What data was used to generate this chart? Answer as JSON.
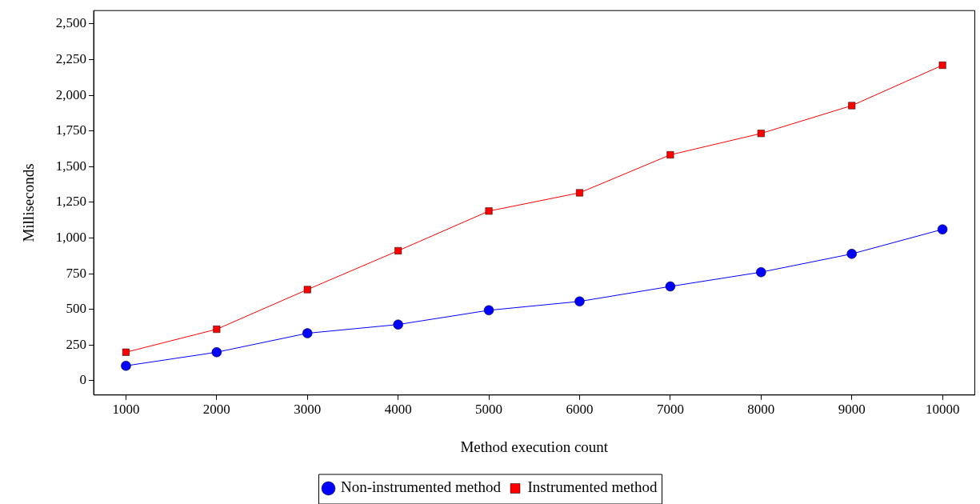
{
  "chart_data": {
    "type": "line",
    "xlabel": "Method execution count",
    "ylabel": "Milliseconds",
    "x": [
      1000,
      2000,
      3000,
      4000,
      5000,
      6000,
      7000,
      8000,
      9000,
      10000
    ],
    "series": [
      {
        "name": "Non-instrumented method",
        "color": "#0000ff",
        "marker": "circle",
        "values": [
          105,
          200,
          333,
          394,
          494,
          556,
          661,
          761,
          889,
          1061
        ]
      },
      {
        "name": "Instrumented method",
        "color": "#ff0000",
        "marker": "square",
        "values": [
          200,
          361,
          639,
          911,
          1189,
          1317,
          1583,
          1733,
          1928,
          2211
        ]
      }
    ],
    "xlim": [
      644,
      10356
    ],
    "xticks": [
      1000,
      2000,
      3000,
      4000,
      5000,
      6000,
      7000,
      8000,
      9000,
      10000
    ],
    "ylim": [
      -100,
      2594
    ],
    "yticks": [
      0,
      250,
      500,
      750,
      {
        "value": 1000,
        "label": "1,000"
      },
      {
        "value": 1250,
        "label": "1,250"
      },
      {
        "value": 1500,
        "label": "1,500"
      },
      {
        "value": 1750,
        "label": "1,750"
      },
      {
        "value": 2000,
        "label": "2,000"
      },
      {
        "value": 2250,
        "label": "2,250"
      },
      {
        "value": 2500,
        "label": "2,500"
      }
    ],
    "grid": false,
    "legend": "bottom"
  }
}
